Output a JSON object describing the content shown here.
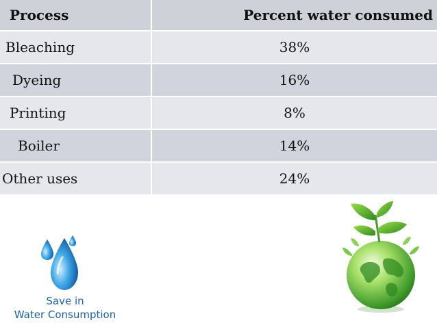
{
  "table": {
    "headers": [
      "Process",
      "Percent water consumed"
    ],
    "rows": [
      {
        "process": "Bleaching",
        "percent": "38%"
      },
      {
        "process": "Dyeing",
        "percent": "16%"
      },
      {
        "process": "Printing",
        "percent": "8%"
      },
      {
        "process": "Boiler",
        "percent": "14%"
      },
      {
        "process": "Other uses",
        "percent": "24%"
      }
    ]
  },
  "caption": {
    "line1": "Save in",
    "line2": "Water Consumption"
  },
  "icons": {
    "drops": "water-drops-icon",
    "globe": "green-globe-plant-icon"
  },
  "colors": {
    "header_bg": "#cfd1d9",
    "row_light": "#e6e7ec",
    "row_dark": "#d2d4dd",
    "caption_text": "#1b63a6"
  }
}
